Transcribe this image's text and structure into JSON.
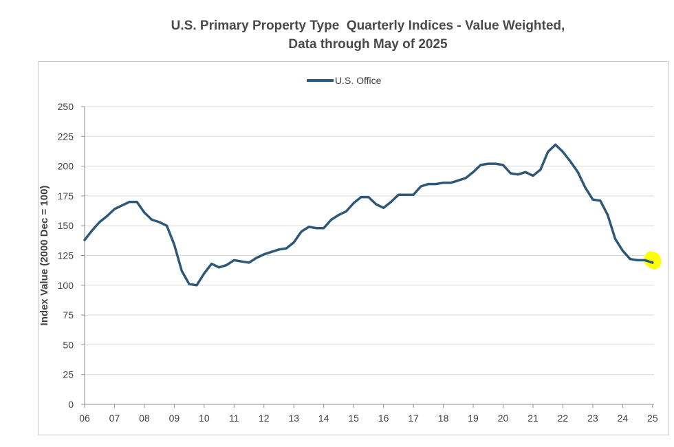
{
  "chart_data": {
    "type": "line",
    "title": "U.S. Primary Property Type  Quarterly Indices - Value Weighted,",
    "subtitle": "Data through May of 2025",
    "xlabel": "",
    "ylabel": "Index Value (2000 Dec = 100)",
    "ylim": [
      0,
      250
    ],
    "yticks": [
      0,
      25,
      50,
      75,
      100,
      125,
      150,
      175,
      200,
      225,
      250
    ],
    "xlim": [
      2006,
      2025.05
    ],
    "xticks": [
      "06",
      "07",
      "08",
      "09",
      "10",
      "11",
      "12",
      "13",
      "14",
      "15",
      "16",
      "17",
      "18",
      "19",
      "20",
      "21",
      "22",
      "23",
      "24",
      "25"
    ],
    "grid": "horizontal",
    "legend_position": "top-center",
    "highlight_color": "#ffff00",
    "series": [
      {
        "name": "U.S. Office",
        "color": "#2e5878",
        "x": [
          2006.0,
          2006.25,
          2006.5,
          2006.75,
          2007.0,
          2007.25,
          2007.5,
          2007.75,
          2008.0,
          2008.25,
          2008.5,
          2008.75,
          2009.0,
          2009.25,
          2009.5,
          2009.75,
          2010.0,
          2010.25,
          2010.5,
          2010.75,
          2011.0,
          2011.25,
          2011.5,
          2011.75,
          2012.0,
          2012.25,
          2012.5,
          2012.75,
          2013.0,
          2013.25,
          2013.5,
          2013.75,
          2014.0,
          2014.25,
          2014.5,
          2014.75,
          2015.0,
          2015.25,
          2015.5,
          2015.75,
          2016.0,
          2016.25,
          2016.5,
          2016.75,
          2017.0,
          2017.25,
          2017.5,
          2017.75,
          2018.0,
          2018.25,
          2018.5,
          2018.75,
          2019.0,
          2019.25,
          2019.5,
          2019.75,
          2020.0,
          2020.25,
          2020.5,
          2020.75,
          2021.0,
          2021.25,
          2021.5,
          2021.75,
          2022.0,
          2022.25,
          2022.5,
          2022.75,
          2023.0,
          2023.25,
          2023.5,
          2023.75,
          2024.0,
          2024.25,
          2024.5,
          2024.75,
          2025.0
        ],
        "values": [
          138,
          146,
          153,
          158,
          164,
          167,
          170,
          170,
          161,
          155,
          153,
          150,
          134,
          112,
          101,
          100,
          110,
          118,
          115,
          117,
          121,
          120,
          119,
          123,
          126,
          128,
          130,
          131,
          136,
          145,
          149,
          148,
          148,
          155,
          159,
          162,
          169,
          174,
          174,
          168,
          165,
          170,
          176,
          176,
          176,
          183,
          185,
          185,
          186,
          186,
          188,
          190,
          195,
          201,
          202,
          202,
          201,
          194,
          193,
          195,
          192,
          197,
          212,
          218,
          212,
          204,
          195,
          182,
          172,
          171,
          159,
          139,
          129,
          122,
          121,
          121,
          119
        ]
      }
    ]
  }
}
